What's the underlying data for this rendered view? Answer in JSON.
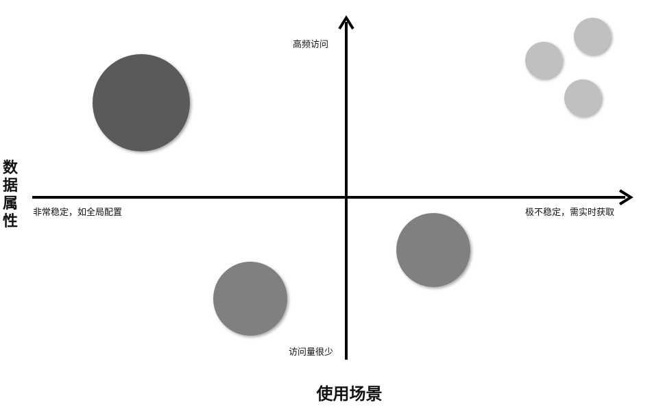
{
  "diagram": {
    "x_axis_title": "使用场景",
    "y_axis_title": "数据属性",
    "x_axis_left_label": "非常稳定，如全局配置",
    "x_axis_right_label": "极不稳定，需实时获取",
    "y_axis_top_label": "高频访问",
    "y_axis_bottom_label": "访问量很少",
    "colors": {
      "axis": "#000000",
      "bubble_dark": "#5a5a5a",
      "bubble_medium": "#808080",
      "bubble_light": "#c0c0c0"
    },
    "bubbles": [
      {
        "quadrant": "top-left",
        "size": "large",
        "shade": "bubble_dark"
      },
      {
        "quadrant": "bottom-left",
        "size": "medium",
        "shade": "bubble_medium"
      },
      {
        "quadrant": "bottom-right",
        "size": "medium",
        "shade": "bubble_medium"
      },
      {
        "quadrant": "top-right",
        "size": "small",
        "shade": "bubble_light"
      },
      {
        "quadrant": "top-right",
        "size": "small",
        "shade": "bubble_light"
      },
      {
        "quadrant": "top-right",
        "size": "small",
        "shade": "bubble_light"
      }
    ]
  }
}
